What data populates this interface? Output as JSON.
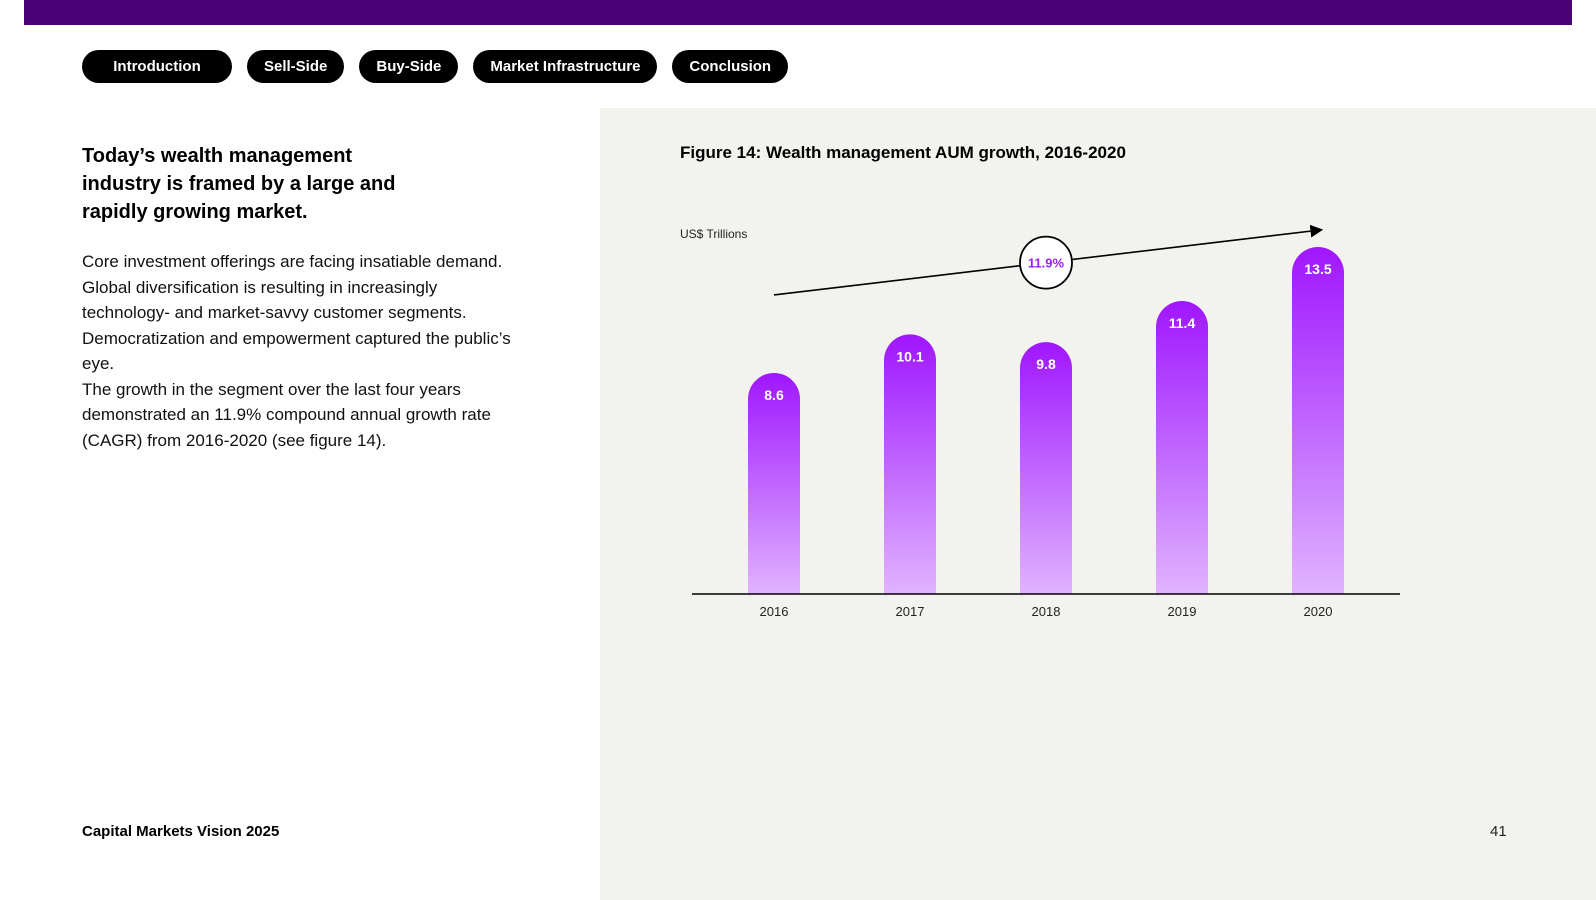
{
  "colors": {
    "top_bar": "#4b0078",
    "panel_bg": "#f2f2ee",
    "bar_top": "#a016ff",
    "bar_bottom": "#e0b3ff",
    "cagr_text": "#9b1ff0"
  },
  "nav": {
    "tabs": [
      "Introduction",
      "Sell-Side",
      "Buy-Side",
      "Market Infrastructure",
      "Conclusion"
    ]
  },
  "content": {
    "headline": "Today’s wealth management industry is framed by a large and rapidly growing market.",
    "paragraph1": "Core investment offerings are facing insatiable demand. Global diversification is resulting in increasingly technology- and market-savvy customer segments. Democratization and empowerment captured the public’s eye.",
    "paragraph2": "The growth in the segment over the last four years demonstrated an 11.9% compound annual growth rate (CAGR) from 2016-2020 (see figure 14)."
  },
  "footer": {
    "title": "Capital Markets Vision 2025",
    "page_number": "41"
  },
  "chart_data": {
    "type": "bar",
    "title": "Figure 14: Wealth management AUM growth, 2016-2020",
    "ylabel": "US$ Trillions",
    "categories": [
      "2016",
      "2017",
      "2018",
      "2019",
      "2020"
    ],
    "values": [
      8.6,
      10.1,
      9.8,
      11.4,
      13.5
    ],
    "value_labels": [
      "8.6",
      "10.1",
      "9.8",
      "11.4",
      "13.5"
    ],
    "annotation": "11.9%",
    "ylim": [
      0,
      13.5
    ],
    "grid": false,
    "legend": "none"
  }
}
